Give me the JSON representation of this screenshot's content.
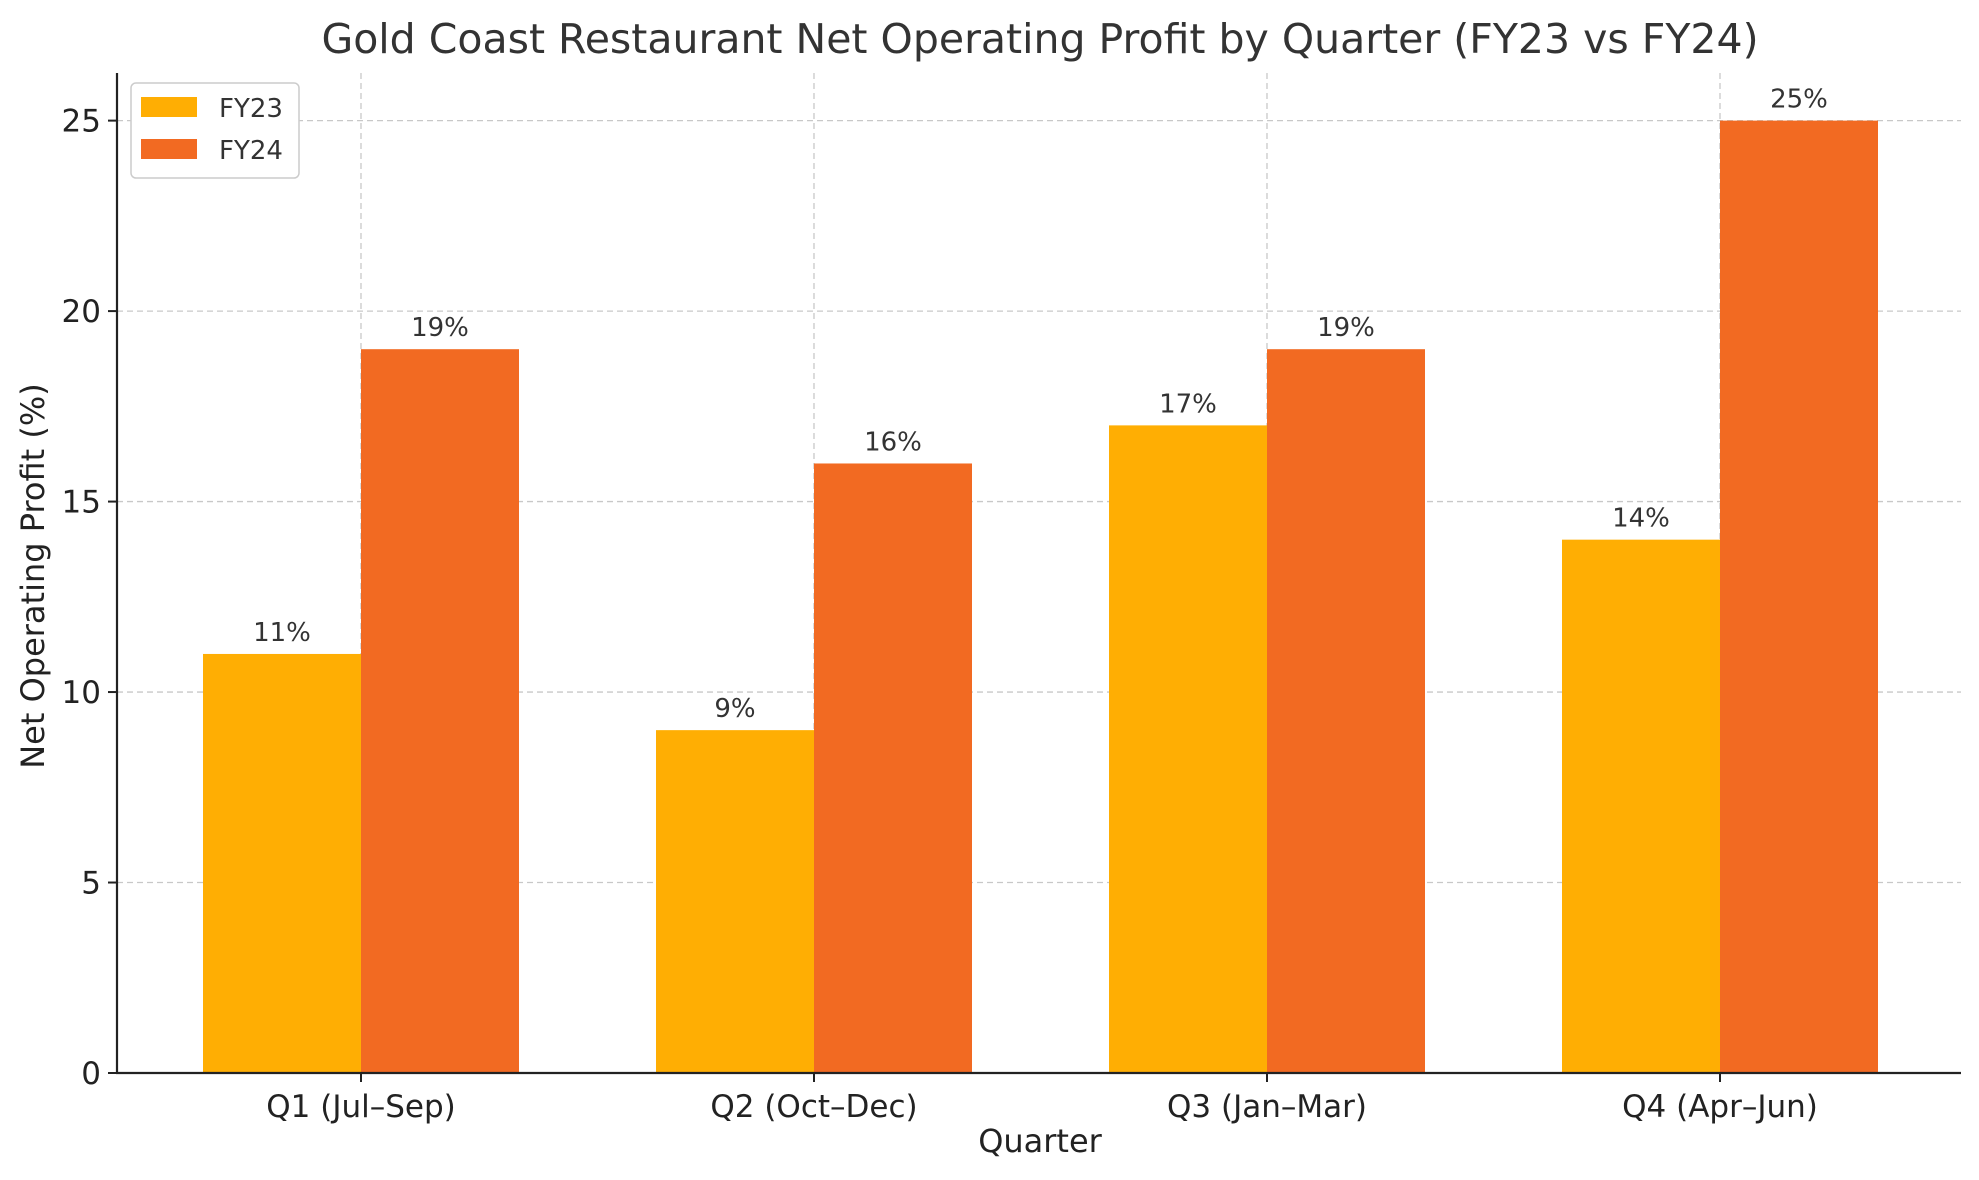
{
  "chart_data": {
    "type": "bar",
    "title": "Gold Coast Restaurant Net Operating Profit by Quarter (FY23 vs FY24)",
    "xlabel": "Quarter",
    "ylabel": "Net Operating Profit (%)",
    "categories": [
      "Q1 (Jul–Sep)",
      "Q2 (Oct–Dec)",
      "Q3 (Jan–Mar)",
      "Q4 (Apr–Jun)"
    ],
    "series": [
      {
        "name": "FY23",
        "color": "#FFAE03",
        "values": [
          11,
          9,
          17,
          14
        ],
        "labels": [
          "11%",
          "9%",
          "17%",
          "14%"
        ]
      },
      {
        "name": "FY24",
        "color": "#F26A22",
        "values": [
          19,
          16,
          19,
          25
        ],
        "labels": [
          "19%",
          "16%",
          "19%",
          "25%"
        ]
      }
    ],
    "ylim": [
      0,
      26.25
    ],
    "yticks": [
      0,
      5,
      10,
      15,
      20,
      25
    ],
    "ytick_labels": [
      "0",
      "5",
      "10",
      "15",
      "20",
      "25"
    ],
    "grid": true,
    "legend_position": "top-left"
  }
}
